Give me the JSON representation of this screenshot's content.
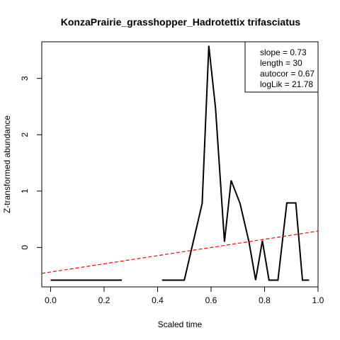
{
  "chart_data": {
    "type": "line",
    "title": "KonzaPrairie_grasshopper_Hadrotettix trifasciatus",
    "xlabel": "Scaled time",
    "ylabel": "Z-transformed abundance",
    "xlim": [
      -0.033,
      1.0
    ],
    "ylim": [
      -0.7,
      3.65
    ],
    "xticks": [
      0.0,
      0.2,
      0.4,
      0.6,
      0.8,
      1.0
    ],
    "xtick_labels": [
      "0.0",
      "0.2",
      "0.4",
      "0.6",
      "0.8",
      "1.0"
    ],
    "yticks": [
      0,
      1,
      2,
      3
    ],
    "ytick_labels": [
      "0",
      "1",
      "2",
      "3"
    ],
    "grid": false,
    "series": [
      {
        "style": "solid",
        "color": "#000000",
        "segments": [
          [
            [
              0.0,
              -0.58
            ],
            [
              0.0333,
              -0.58
            ],
            [
              0.0667,
              -0.58
            ],
            [
              0.1,
              -0.58
            ],
            [
              0.1333,
              -0.58
            ],
            [
              0.1667,
              -0.58
            ],
            [
              0.2,
              -0.58
            ],
            [
              0.2333,
              -0.58
            ],
            [
              0.2667,
              -0.58
            ]
          ],
          [
            [
              0.4167,
              -0.58
            ],
            [
              0.45,
              -0.58
            ],
            [
              0.4833,
              -0.58
            ],
            [
              0.5,
              -0.58
            ],
            [
              0.5333,
              0.1
            ],
            [
              0.5667,
              0.78
            ],
            [
              0.5917,
              3.58
            ],
            [
              0.6167,
              2.47
            ],
            [
              0.65,
              0.1
            ],
            [
              0.675,
              1.19
            ],
            [
              0.7083,
              0.78
            ],
            [
              0.7417,
              0.1
            ],
            [
              0.7667,
              -0.58
            ],
            [
              0.7917,
              0.12
            ],
            [
              0.8167,
              -0.58
            ],
            [
              0.85,
              -0.58
            ],
            [
              0.8833,
              0.79
            ],
            [
              0.9167,
              0.79
            ],
            [
              0.9417,
              -0.58
            ],
            [
              0.9667,
              -0.58
            ]
          ]
        ]
      },
      {
        "style": "dashed",
        "color": "#ff0000",
        "line": [
          [
            -0.033,
            -0.46
          ],
          [
            1.0,
            0.29
          ]
        ]
      }
    ],
    "legend": {
      "placement": "top-right",
      "entries": [
        "slope = 0.73",
        "length = 30",
        "autocor = 0.67",
        "logLik = 21.78"
      ]
    }
  }
}
